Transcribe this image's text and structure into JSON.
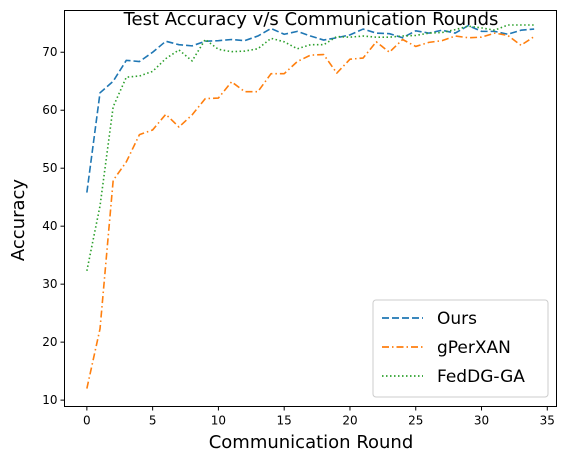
{
  "chart_data": {
    "type": "line",
    "title": "Test Accuracy v/s Communication Rounds",
    "xlabel": "Communication Round",
    "ylabel": "Accuracy",
    "xlim": [
      -1.7,
      35.7
    ],
    "ylim": [
      8.9,
      77.2
    ],
    "xticks": [
      0,
      5,
      10,
      15,
      20,
      25,
      30,
      35
    ],
    "yticks": [
      10,
      20,
      30,
      40,
      50,
      60,
      70
    ],
    "grid": false,
    "legend_position": "lower-right",
    "x": [
      0,
      1,
      2,
      3,
      4,
      5,
      6,
      7,
      8,
      9,
      10,
      11,
      12,
      13,
      14,
      15,
      16,
      17,
      18,
      19,
      20,
      21,
      22,
      23,
      24,
      25,
      26,
      27,
      28,
      29,
      30,
      31,
      32,
      33,
      34
    ],
    "series": [
      {
        "name": "Ours",
        "color": "#1f77b4",
        "dash": "dashed",
        "values": [
          45.8,
          63.0,
          65.0,
          68.6,
          68.4,
          70.0,
          71.9,
          71.3,
          71.1,
          71.9,
          72.0,
          72.2,
          72.0,
          72.8,
          74.1,
          73.1,
          73.6,
          72.8,
          72.1,
          72.5,
          73.0,
          74.0,
          73.3,
          73.2,
          72.5,
          73.7,
          73.3,
          73.8,
          73.3,
          74.6,
          73.6,
          73.6,
          73.1,
          73.8,
          74.0
        ]
      },
      {
        "name": "gPerXAN",
        "color": "#ff7f0e",
        "dash": "dashdot",
        "values": [
          12.0,
          22.3,
          47.9,
          51.1,
          55.8,
          56.6,
          59.3,
          57.1,
          59.2,
          62.0,
          62.1,
          64.9,
          63.2,
          63.2,
          66.3,
          66.3,
          68.4,
          69.5,
          69.6,
          66.4,
          68.8,
          69.0,
          71.8,
          70.0,
          72.2,
          71.0,
          71.7,
          72.0,
          72.8,
          72.5,
          72.6,
          73.3,
          72.9,
          71.2,
          72.7
        ]
      },
      {
        "name": "FedDG-GA",
        "color": "#2ca02c",
        "dash": "dotted",
        "values": [
          32.3,
          43.5,
          60.6,
          65.7,
          65.9,
          66.7,
          68.9,
          70.4,
          68.5,
          72.2,
          70.5,
          70.1,
          70.2,
          70.6,
          72.4,
          71.8,
          70.6,
          71.3,
          71.3,
          72.7,
          72.6,
          72.8,
          72.6,
          72.6,
          72.8,
          72.9,
          73.3,
          73.4,
          73.9,
          74.5,
          74.2,
          73.8,
          74.7,
          74.7,
          74.7
        ]
      }
    ]
  }
}
